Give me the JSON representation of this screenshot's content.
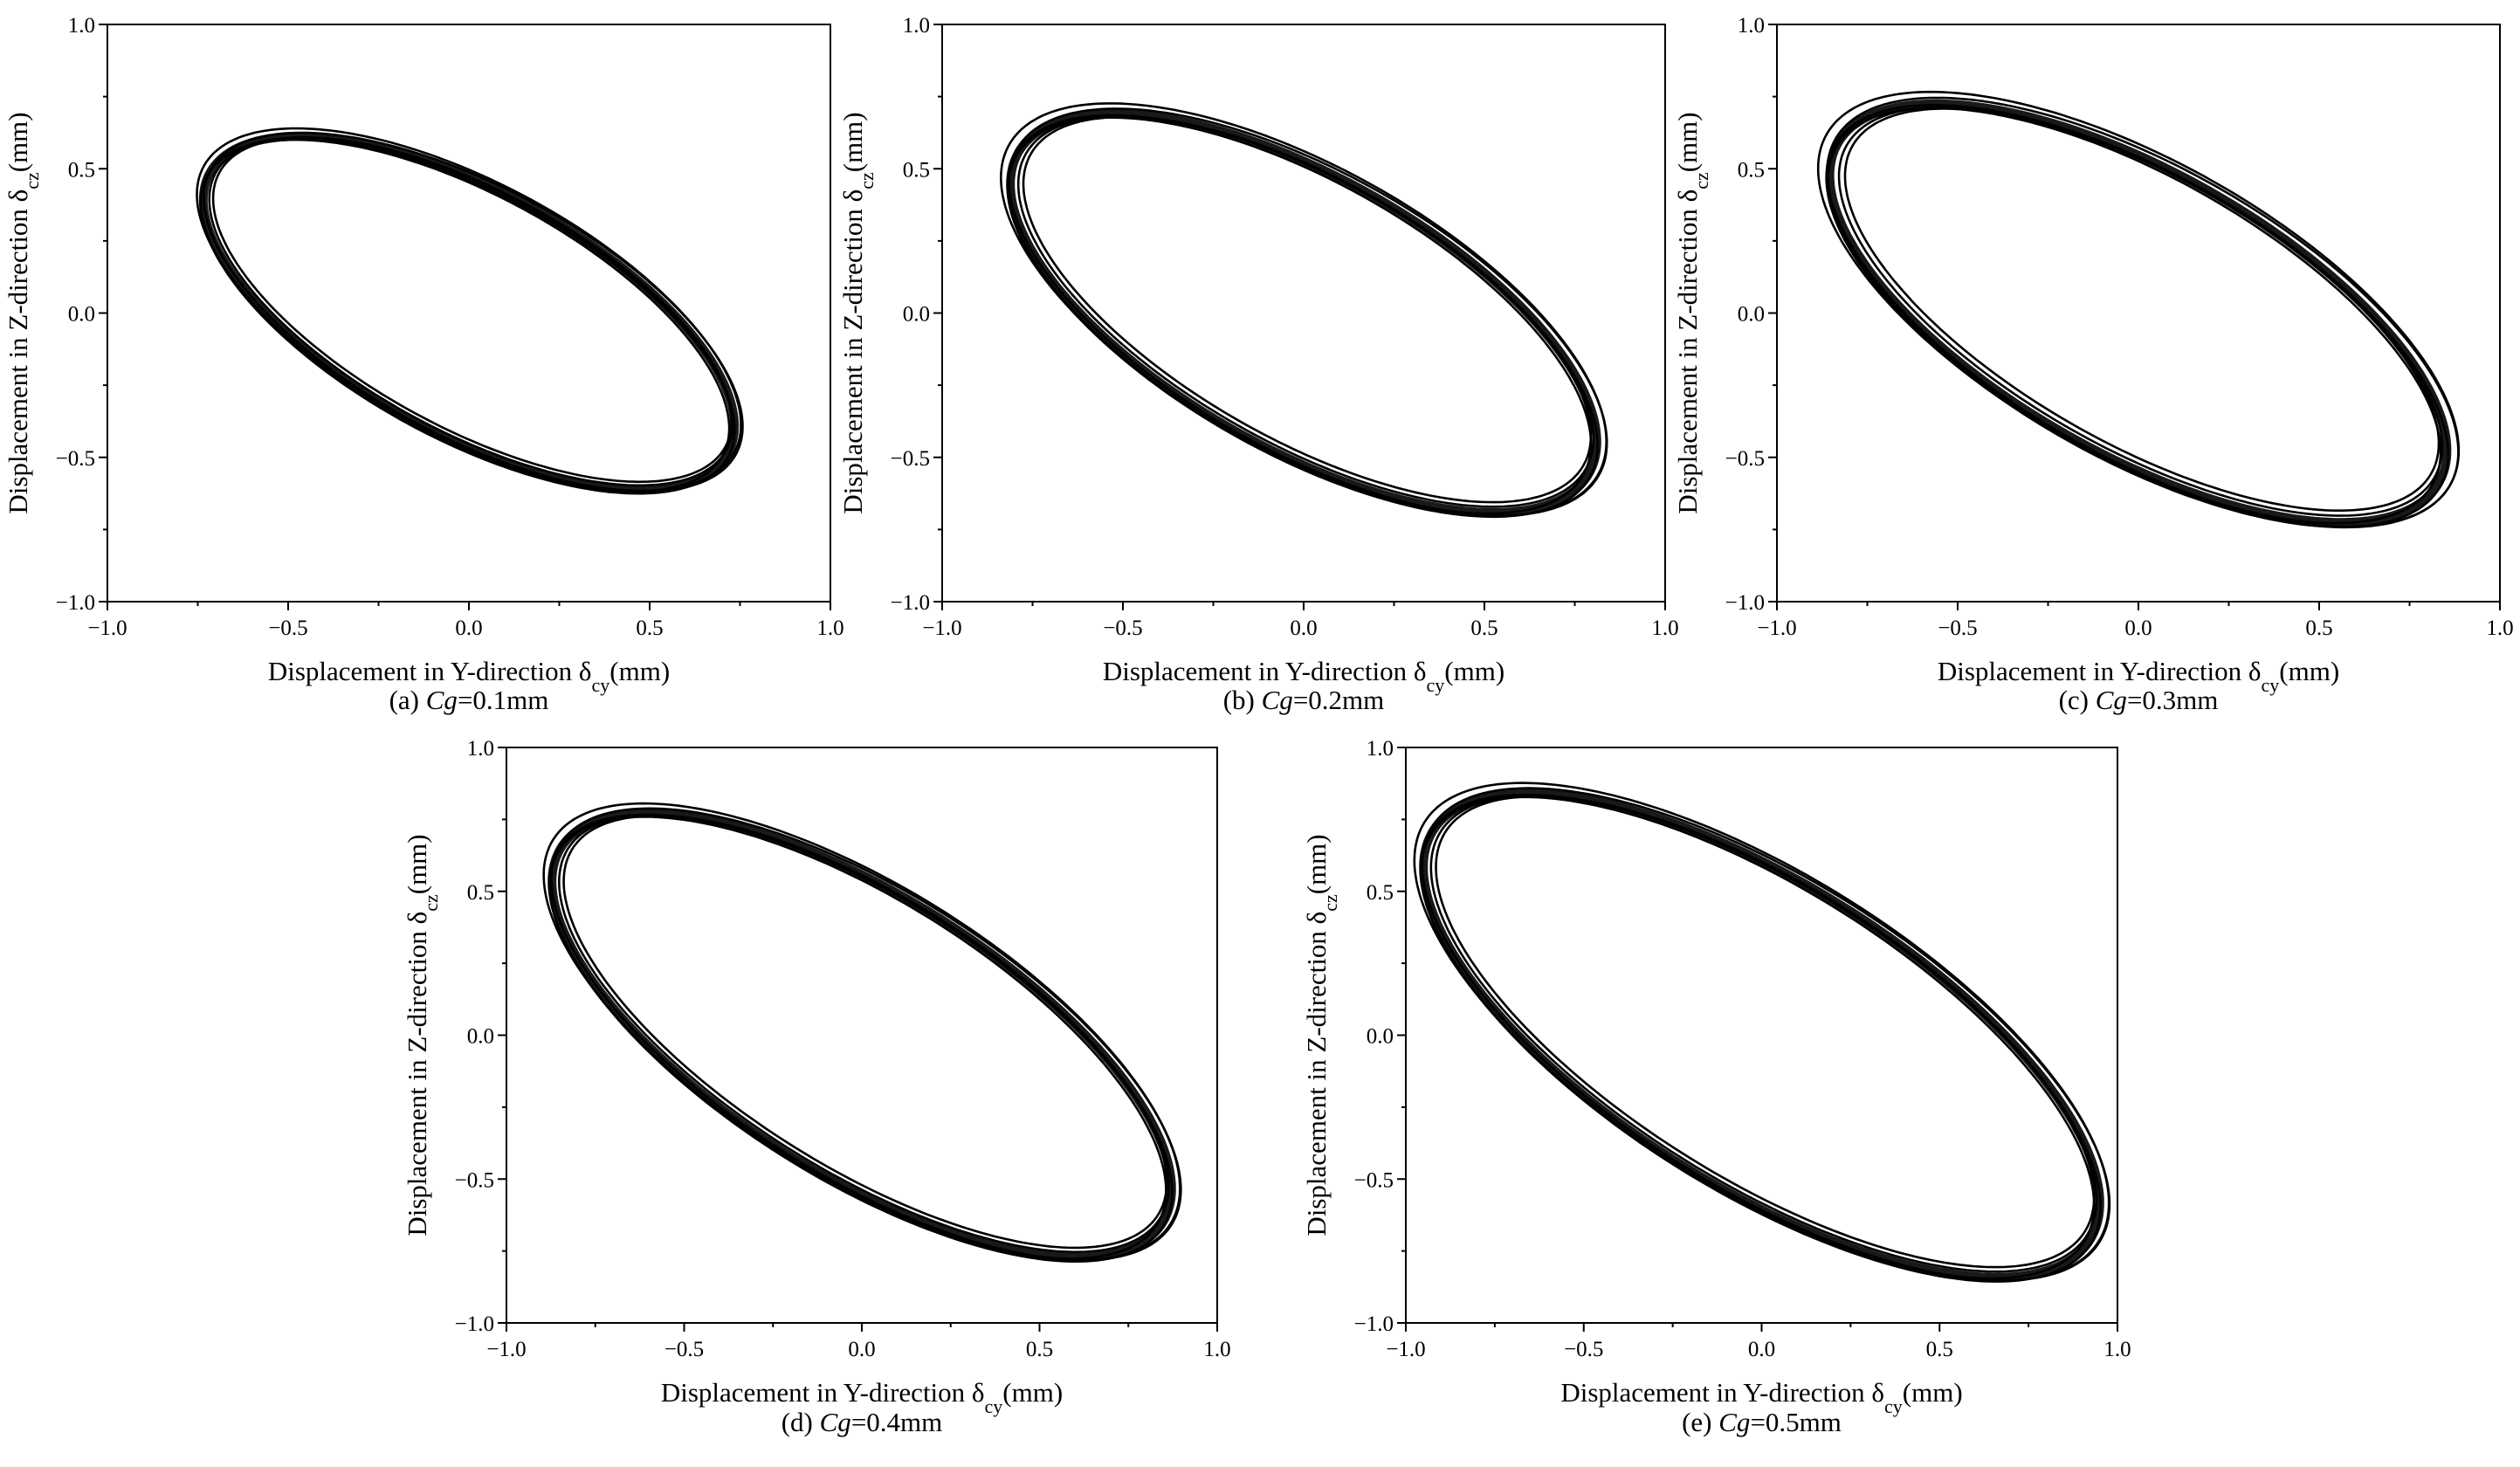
{
  "figure": {
    "colors": {
      "line": "#000000",
      "background": "#ffffff"
    }
  },
  "chart_data": [
    {
      "id": "a",
      "type": "line",
      "caption_prefix": "(a) ",
      "caption_var": "Cg",
      "caption_value": "=0.1mm",
      "xlabel_main": "Displacement in Y-direction δ",
      "xlabel_sub": "cy",
      "xlabel_unit": "(mm)",
      "ylabel_main": "Displacement in Z-direction δ",
      "ylabel_sub": "cz",
      "ylabel_unit": "(mm)",
      "xlim": [
        -1.0,
        1.0
      ],
      "ylim": [
        -1.0,
        1.0
      ],
      "xticks": [
        "−1.0",
        "−0.5",
        "0.0",
        "0.5",
        "1.0"
      ],
      "yticks": [
        "−1.0",
        "−0.5",
        "0.0",
        "0.5",
        "1.0"
      ],
      "tick_values": [
        -1.0,
        -0.5,
        0.0,
        0.5,
        1.0
      ],
      "grid": false,
      "orbit": {
        "center": [
          0.0,
          0.0
        ],
        "semi_major": 0.89,
        "semi_minor": 0.41,
        "angle_deg": -37,
        "band_spread": 0.045,
        "loops": 6
      }
    },
    {
      "id": "b",
      "type": "line",
      "caption_prefix": "(b) ",
      "caption_var": "Cg",
      "caption_value": "=0.2mm",
      "xlabel_main": "Displacement in Y-direction δ",
      "xlabel_sub": "cy",
      "xlabel_unit": "(mm)",
      "ylabel_main": "Displacement in Z-direction δ",
      "ylabel_sub": "cz",
      "ylabel_unit": "(mm)",
      "xlim": [
        -1.0,
        1.0
      ],
      "ylim": [
        -1.0,
        1.0
      ],
      "xticks": [
        "−1.0",
        "−0.5",
        "0.0",
        "0.5",
        "1.0"
      ],
      "yticks": [
        "−1.0",
        "−0.5",
        "0.0",
        "0.5",
        "1.0"
      ],
      "tick_values": [
        -1.0,
        -0.5,
        0.0,
        0.5,
        1.0
      ],
      "grid": false,
      "orbit": {
        "center": [
          0.0,
          0.0
        ],
        "semi_major": 1.0,
        "semi_minor": 0.46,
        "angle_deg": -38,
        "band_spread": 0.06,
        "loops": 6
      }
    },
    {
      "id": "c",
      "type": "line",
      "caption_prefix": "(c) ",
      "caption_var": "Cg",
      "caption_value": "=0.3mm",
      "xlabel_main": "Displacement in Y-direction δ",
      "xlabel_sub": "cy",
      "xlabel_unit": "(mm)",
      "ylabel_main": "Displacement in Z-direction δ",
      "ylabel_sub": "cz",
      "ylabel_unit": "(mm)",
      "xlim": [
        -1.0,
        1.0
      ],
      "ylim": [
        -1.0,
        1.0
      ],
      "xticks": [
        "−1.0",
        "−0.5",
        "0.0",
        "0.5",
        "1.0"
      ],
      "yticks": [
        "−1.0",
        "−0.5",
        "0.0",
        "0.5",
        "1.0"
      ],
      "tick_values": [
        -1.0,
        -0.5,
        0.0,
        0.5,
        1.0
      ],
      "grid": false,
      "orbit": {
        "center": [
          0.0,
          0.0
        ],
        "semi_major": 1.06,
        "semi_minor": 0.48,
        "angle_deg": -38,
        "band_spread": 0.07,
        "loops": 6
      }
    },
    {
      "id": "d",
      "type": "line",
      "caption_prefix": "(d) ",
      "caption_var": "Cg",
      "caption_value": "=0.4mm",
      "xlabel_main": "Displacement in Y-direction δ",
      "xlabel_sub": "cy",
      "xlabel_unit": "(mm)",
      "ylabel_main": "Displacement in Z-direction δ",
      "ylabel_sub": "cz",
      "ylabel_unit": "(mm)",
      "xlim": [
        -1.0,
        1.0
      ],
      "ylim": [
        -1.0,
        1.0
      ],
      "xticks": [
        "−1.0",
        "−0.5",
        "0.0",
        "0.5",
        "1.0"
      ],
      "yticks": [
        "−1.0",
        "−0.5",
        "0.0",
        "0.5",
        "1.0"
      ],
      "tick_values": [
        -1.0,
        -0.5,
        0.0,
        0.5,
        1.0
      ],
      "grid": false,
      "orbit": {
        "center": [
          0.0,
          0.0
        ],
        "semi_major": 1.1,
        "semi_minor": 0.47,
        "angle_deg": -40,
        "band_spread": 0.05,
        "loops": 6
      }
    },
    {
      "id": "e",
      "type": "line",
      "caption_prefix": "(e) ",
      "caption_var": "Cg",
      "caption_value": "=0.5mm",
      "xlabel_main": "Displacement in Y-direction δ",
      "xlabel_sub": "cy",
      "xlabel_unit": "(mm)",
      "ylabel_main": "Displacement in Z-direction δ",
      "ylabel_sub": "cz",
      "ylabel_unit": "(mm)",
      "xlim": [
        -1.0,
        1.0
      ],
      "ylim": [
        -1.0,
        1.0
      ],
      "xticks": [
        "−1.0",
        "−0.5",
        "0.0",
        "0.5",
        "1.0"
      ],
      "yticks": [
        "−1.0",
        "−0.5",
        "0.0",
        "0.5",
        "1.0"
      ],
      "tick_values": [
        -1.0,
        -0.5,
        0.0,
        0.5,
        1.0
      ],
      "grid": false,
      "orbit": {
        "center": [
          0.0,
          0.0
        ],
        "semi_major": 1.2,
        "semi_minor": 0.51,
        "angle_deg": -40,
        "band_spread": 0.05,
        "loops": 6
      }
    }
  ]
}
